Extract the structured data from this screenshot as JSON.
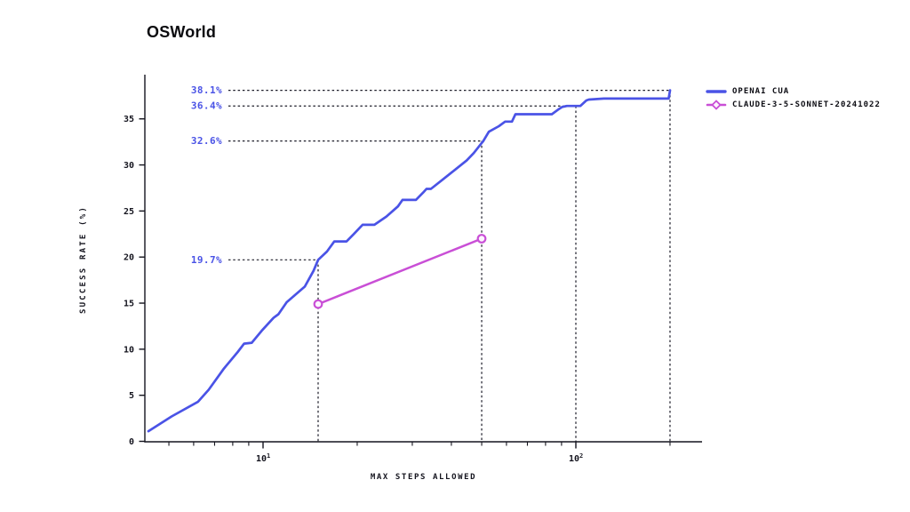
{
  "colors": {
    "cua_blue": "#4a53e6",
    "claude_magenta": "#c94fd6",
    "ink": "#14141e",
    "dash": "#1c1c28",
    "background": "#ffffff",
    "marker_fill": "#fdf4fe"
  },
  "legend": {
    "entries": [
      {
        "label": "OPENAI CUA"
      },
      {
        "label": "CLAUDE-3-5-SONNET-20241022"
      }
    ]
  },
  "chart_data": {
    "type": "line",
    "title": "OSWorld",
    "xlabel": "MAX STEPS ALLOWED",
    "ylabel": "SUCCESS RATE (%)",
    "x_scale": "log",
    "xlim": [
      4.3,
      250
    ],
    "ylim": [
      0,
      39.8
    ],
    "grid": false,
    "legend_position": "upper right outside",
    "y_ticks": [
      0,
      5,
      10,
      15,
      20,
      25,
      30,
      35
    ],
    "x_major_ticks": [
      {
        "base": "10",
        "exp": "1",
        "value": 10
      },
      {
        "base": "10",
        "exp": "2",
        "value": 100
      }
    ],
    "x_minor_ticks": [
      5,
      6,
      7,
      8,
      9,
      20,
      30,
      40,
      50,
      60,
      70,
      80,
      90,
      200
    ],
    "series": [
      {
        "name": "OPENAI CUA",
        "color": "#4a53e6",
        "marker": "none",
        "points": [
          [
            4.3,
            1.1
          ],
          [
            5.1,
            2.7
          ],
          [
            6.2,
            4.3
          ],
          [
            6.7,
            5.6
          ],
          [
            7.5,
            7.9
          ],
          [
            8.3,
            9.7
          ],
          [
            8.7,
            10.6
          ],
          [
            9.2,
            10.7
          ],
          [
            9.9,
            12.0
          ],
          [
            10.8,
            13.4
          ],
          [
            11.2,
            13.8
          ],
          [
            11.9,
            15.1
          ],
          [
            13.6,
            16.8
          ],
          [
            14.5,
            18.5
          ],
          [
            15,
            19.7
          ],
          [
            16,
            20.6
          ],
          [
            16.9,
            21.7
          ],
          [
            18.5,
            21.7
          ],
          [
            19.5,
            22.5
          ],
          [
            20.8,
            23.5
          ],
          [
            22.7,
            23.5
          ],
          [
            24.8,
            24.4
          ],
          [
            27,
            25.5
          ],
          [
            27.9,
            26.2
          ],
          [
            30.8,
            26.2
          ],
          [
            32.5,
            27.0
          ],
          [
            33.3,
            27.4
          ],
          [
            34.4,
            27.4
          ],
          [
            37.5,
            28.4
          ],
          [
            40.8,
            29.4
          ],
          [
            44.8,
            30.5
          ],
          [
            47.2,
            31.3
          ],
          [
            49.8,
            32.3
          ],
          [
            50.6,
            32.6
          ],
          [
            52.7,
            33.6
          ],
          [
            56.7,
            34.2
          ],
          [
            59.4,
            34.7
          ],
          [
            62.5,
            34.7
          ],
          [
            64.1,
            35.5
          ],
          [
            83.8,
            35.5
          ],
          [
            87.7,
            36.0
          ],
          [
            90.5,
            36.3
          ],
          [
            93.6,
            36.4
          ],
          [
            103.3,
            36.4
          ],
          [
            108,
            37.0
          ],
          [
            110,
            37.1
          ],
          [
            123,
            37.2
          ],
          [
            198,
            37.2
          ],
          [
            200,
            38.1
          ]
        ]
      },
      {
        "name": "CLAUDE-3-5-SONNET-20241022",
        "color": "#c94fd6",
        "marker": "circle",
        "points": [
          [
            15,
            14.9
          ],
          [
            50,
            22.0
          ]
        ]
      }
    ],
    "annotations": [
      {
        "label": "38.1%",
        "x": 200,
        "y": 38.1
      },
      {
        "label": "36.4%",
        "x": 100,
        "y": 36.4
      },
      {
        "label": "32.6%",
        "x": 50,
        "y": 32.6
      },
      {
        "label": "19.7%",
        "x": 15,
        "y": 19.7
      }
    ]
  }
}
